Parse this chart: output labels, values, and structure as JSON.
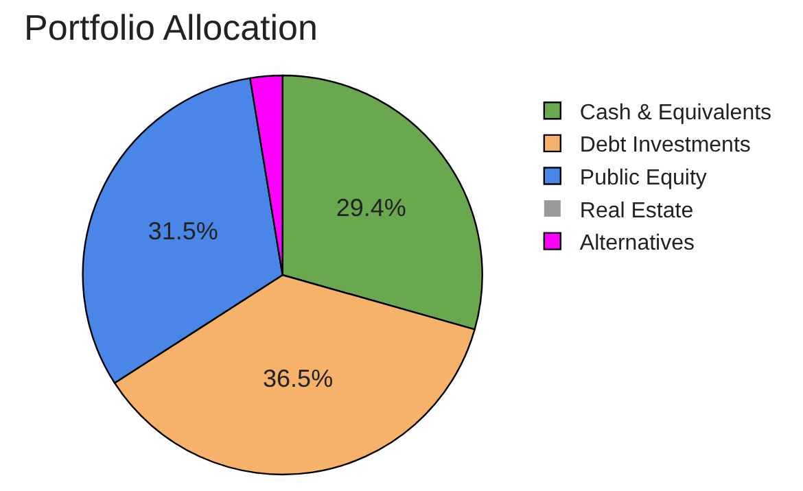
{
  "chart_data": {
    "type": "pie",
    "title": "Portfolio Allocation",
    "categories": [
      "Cash & Equivalents",
      "Debt Investments",
      "Public Equity",
      "Real Estate",
      "Alternatives"
    ],
    "values": [
      29.4,
      36.5,
      31.5,
      0,
      2.6
    ],
    "colors": [
      "#6aa84f",
      "#f6b26b",
      "#4a86e8",
      "#999999",
      "#ff00ff"
    ],
    "value_labels": [
      "29.4%",
      "36.5%",
      "31.5%",
      null,
      null
    ],
    "legend": "top right"
  }
}
